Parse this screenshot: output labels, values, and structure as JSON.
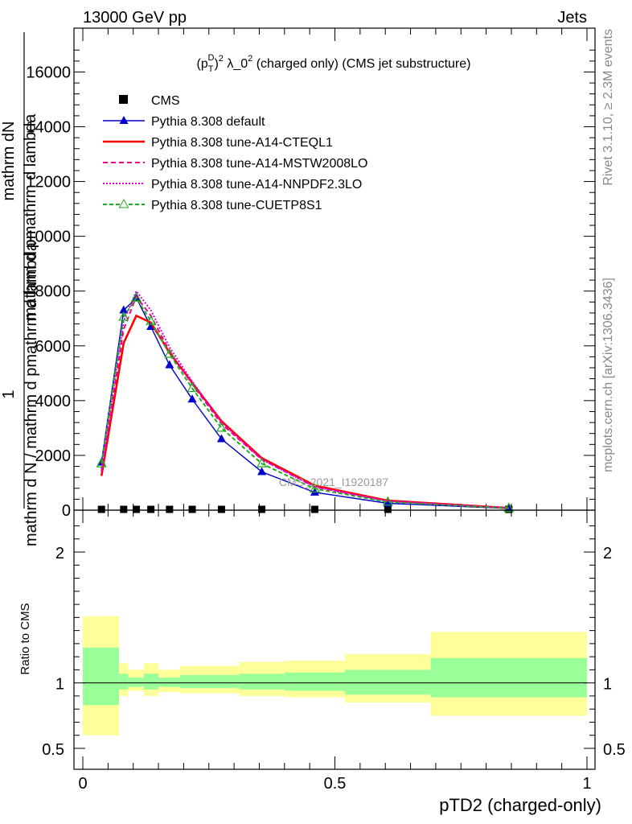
{
  "header": {
    "left": "13000 GeV pp",
    "right": "Jets"
  },
  "side_labels": {
    "rivet": "Rivet 3.1.10, ≥ 2.3M events",
    "mcplots": "mcplots.cern.ch [arXiv:1306.3436]"
  },
  "watermark": "CMS_2021_I1920187",
  "chart_data": [
    {
      "type": "line",
      "title": "(p_T^D)^2 λ_0^2 (charged only) (CMS jet substructure)",
      "title_parts": {
        "base": "(p",
        "sup1": "D",
        "sub1": "T",
        "mid": ")",
        "sup2": "2",
        "mid2": " λ_0",
        "sup3": "2",
        "tail": " (charged only) (CMS jet substructure)"
      },
      "ylabel_main": "1",
      "ylabel_num": "mathrm dN",
      "ylabel_overlap": "mathrm d pmathrm d lambda",
      "ylabel_den": "mathrm d N / mathrm d pmathrm d lambda",
      "xlim": [
        0,
        1
      ],
      "ylim": [
        0,
        17600
      ],
      "yticks": [
        0,
        2000,
        4000,
        6000,
        8000,
        10000,
        12000,
        14000,
        16000
      ],
      "ytick_labels": [
        "0",
        "2000",
        "4000",
        "6000",
        "8000",
        "10000",
        "12000",
        "14000",
        "16000"
      ],
      "series": [
        {
          "name": "CMS",
          "color": "#000000",
          "marker": "square",
          "dash": "none",
          "x": [
            0.037,
            0.081,
            0.106,
            0.135,
            0.172,
            0.217,
            0.275,
            0.355,
            0.46,
            0.605,
            0.845
          ],
          "y": [
            0,
            0,
            0,
            0,
            0,
            0,
            0,
            0,
            0,
            0,
            0
          ]
        },
        {
          "name": "Pythia 8.308 default",
          "color": "#0000cc",
          "marker": "triangle",
          "dash": "none",
          "x": [
            0.037,
            0.081,
            0.106,
            0.135,
            0.172,
            0.217,
            0.275,
            0.355,
            0.46,
            0.605,
            0.845
          ],
          "y": [
            1750,
            7300,
            7750,
            6700,
            5300,
            4050,
            2600,
            1400,
            650,
            250,
            60
          ]
        },
        {
          "name": "Pythia 8.308 tune-A14-CTEQL1",
          "color": "#ff0000",
          "marker": "none",
          "dash": "none",
          "x": [
            0.037,
            0.081,
            0.106,
            0.135,
            0.172,
            0.217,
            0.275,
            0.355,
            0.46,
            0.605,
            0.845
          ],
          "y": [
            1250,
            6100,
            7100,
            6850,
            5750,
            4650,
            3250,
            1900,
            900,
            350,
            80
          ]
        },
        {
          "name": "Pythia 8.308 tune-A14-MSTW2008LO",
          "color": "#ee0088",
          "marker": "none",
          "dash": "6,4",
          "x": [
            0.037,
            0.081,
            0.106,
            0.135,
            0.172,
            0.217,
            0.275,
            0.355,
            0.46,
            0.605,
            0.845
          ],
          "y": [
            1400,
            6600,
            7800,
            7100,
            5800,
            4600,
            3150,
            1850,
            850,
            330,
            75
          ]
        },
        {
          "name": "Pythia 8.308 tune-A14-NNPDF2.3LO",
          "color": "#dd00dd",
          "marker": "none",
          "dash": "2,2",
          "x": [
            0.037,
            0.081,
            0.106,
            0.135,
            0.172,
            0.217,
            0.275,
            0.355,
            0.46,
            0.605,
            0.845
          ],
          "y": [
            1500,
            6900,
            8000,
            7300,
            5950,
            4700,
            3200,
            1850,
            850,
            330,
            75
          ]
        },
        {
          "name": "Pythia 8.308 tune-CUETP8S1",
          "color": "#22aa22",
          "marker": "triangle-open",
          "dash": "5,3",
          "x": [
            0.037,
            0.081,
            0.106,
            0.135,
            0.172,
            0.217,
            0.275,
            0.355,
            0.46,
            0.605,
            0.845
          ],
          "y": [
            1700,
            7050,
            7750,
            6900,
            5700,
            4450,
            3000,
            1700,
            780,
            300,
            70
          ]
        }
      ],
      "legend_position": "top-left"
    },
    {
      "type": "area",
      "ylabel": "Ratio to CMS",
      "xlabel": "pTD2 (charged-only)",
      "xlim": [
        0,
        1
      ],
      "ylim": [
        0.34,
        2.32
      ],
      "yticks": [
        0.5,
        1,
        2
      ],
      "ytick_labels": [
        "0.5",
        "1",
        "2"
      ],
      "xticks": [
        0,
        0.5,
        1
      ],
      "xtick_labels": [
        "0",
        "0.5",
        "1"
      ],
      "band_colors": {
        "outer": "#ffff99",
        "inner": "#99ff99",
        "reference": "#000000"
      },
      "bins": [
        {
          "x0": 0.0,
          "x1": 0.072,
          "outer": [
            0.6,
            1.51
          ],
          "inner": [
            0.83,
            1.27
          ]
        },
        {
          "x0": 0.072,
          "x1": 0.09,
          "outer": [
            0.9,
            1.15
          ],
          "inner": [
            0.95,
            1.07
          ]
        },
        {
          "x0": 0.09,
          "x1": 0.121,
          "outer": [
            0.94,
            1.1
          ],
          "inner": [
            0.97,
            1.04
          ]
        },
        {
          "x0": 0.121,
          "x1": 0.15,
          "outer": [
            0.9,
            1.15
          ],
          "inner": [
            0.95,
            1.07
          ]
        },
        {
          "x0": 0.15,
          "x1": 0.193,
          "outer": [
            0.93,
            1.1
          ],
          "inner": [
            0.97,
            1.04
          ]
        },
        {
          "x0": 0.193,
          "x1": 0.24,
          "outer": [
            0.92,
            1.13
          ],
          "inner": [
            0.96,
            1.06
          ]
        },
        {
          "x0": 0.24,
          "x1": 0.31,
          "outer": [
            0.92,
            1.13
          ],
          "inner": [
            0.96,
            1.06
          ]
        },
        {
          "x0": 0.31,
          "x1": 0.4,
          "outer": [
            0.9,
            1.16
          ],
          "inner": [
            0.95,
            1.07
          ]
        },
        {
          "x0": 0.4,
          "x1": 0.52,
          "outer": [
            0.89,
            1.17
          ],
          "inner": [
            0.94,
            1.08
          ]
        },
        {
          "x0": 0.52,
          "x1": 0.69,
          "outer": [
            0.85,
            1.22
          ],
          "inner": [
            0.91,
            1.1
          ]
        },
        {
          "x0": 0.69,
          "x1": 1.0,
          "outer": [
            0.75,
            1.39
          ],
          "inner": [
            0.89,
            1.19
          ]
        }
      ],
      "series": [
        {
          "name": "Pythia 8.308 default",
          "color": "#0000cc",
          "x": [],
          "y": []
        }
      ]
    }
  ]
}
